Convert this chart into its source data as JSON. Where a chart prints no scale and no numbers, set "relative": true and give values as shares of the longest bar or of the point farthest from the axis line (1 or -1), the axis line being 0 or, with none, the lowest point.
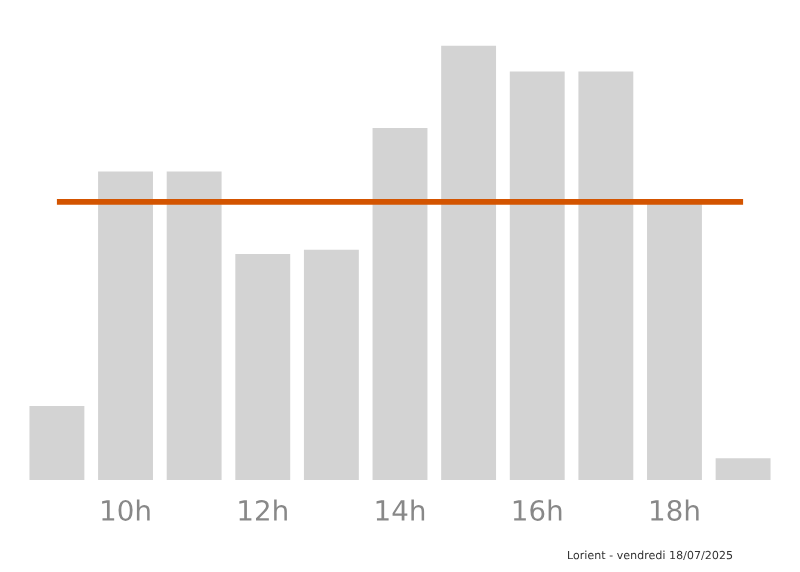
{
  "chart_data": {
    "type": "bar",
    "relative": true,
    "categories": [
      null,
      "10h",
      null,
      "12h",
      null,
      "14h",
      null,
      "16h",
      null,
      "18h",
      null
    ],
    "values": [
      0.17,
      0.71,
      0.71,
      0.52,
      0.53,
      0.81,
      1,
      0.94,
      0.94,
      0.64,
      0.05
    ],
    "color": "#d3d3d3",
    "ref_lines": [
      {
        "axis": "y",
        "value": 0.64,
        "color": "#d35400"
      }
    ],
    "annotations": [
      "Lorient - vendredi 18/07/2025"
    ],
    "grid": false,
    "legend": false
  }
}
